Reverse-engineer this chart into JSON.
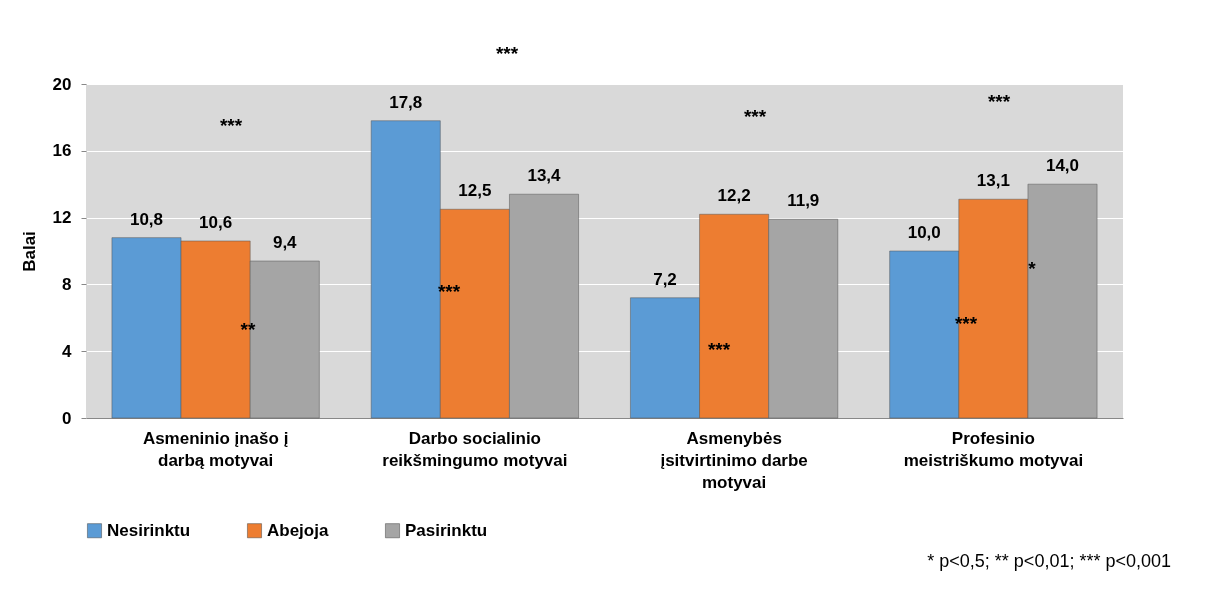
{
  "chart_data": {
    "type": "bar",
    "ylabel": "Balai",
    "categories": [
      "Asmeninio įnašo į darbą motyvai",
      "Darbo socialinio reikšmingumo motyvai",
      "Asmenybės įsitvirtinimo darbe motyvai",
      "Profesinio meistriškumo motyvai"
    ],
    "series": [
      {
        "name": "Nesirinktu",
        "color": "#5b9bd5",
        "values": [
          10.8,
          17.8,
          7.2,
          10.0
        ],
        "value_labels": [
          "10,8",
          "17,8",
          "7,2",
          "10,0"
        ]
      },
      {
        "name": "Abejoja",
        "color": "#ed7d31",
        "values": [
          10.6,
          12.5,
          12.2,
          13.1
        ],
        "value_labels": [
          "10,6",
          "12,5",
          "12,2",
          "13,1"
        ]
      },
      {
        "name": "Pasirinktu",
        "color": "#a5a5a5",
        "values": [
          9.4,
          13.4,
          11.9,
          14.0
        ],
        "value_labels": [
          "9,4",
          "13,4",
          "11,9",
          "14,0"
        ]
      }
    ],
    "ylim": [
      0,
      20
    ],
    "yticks": [
      0,
      4,
      8,
      12,
      16,
      20
    ],
    "grid": "y",
    "legend": "bottom",
    "annotations": [
      "***",
      "**",
      "***",
      "***",
      "***",
      "***",
      "***",
      "***",
      "*",
      "* p<0,5; ** p<0,01; *** p<0,001"
    ]
  }
}
